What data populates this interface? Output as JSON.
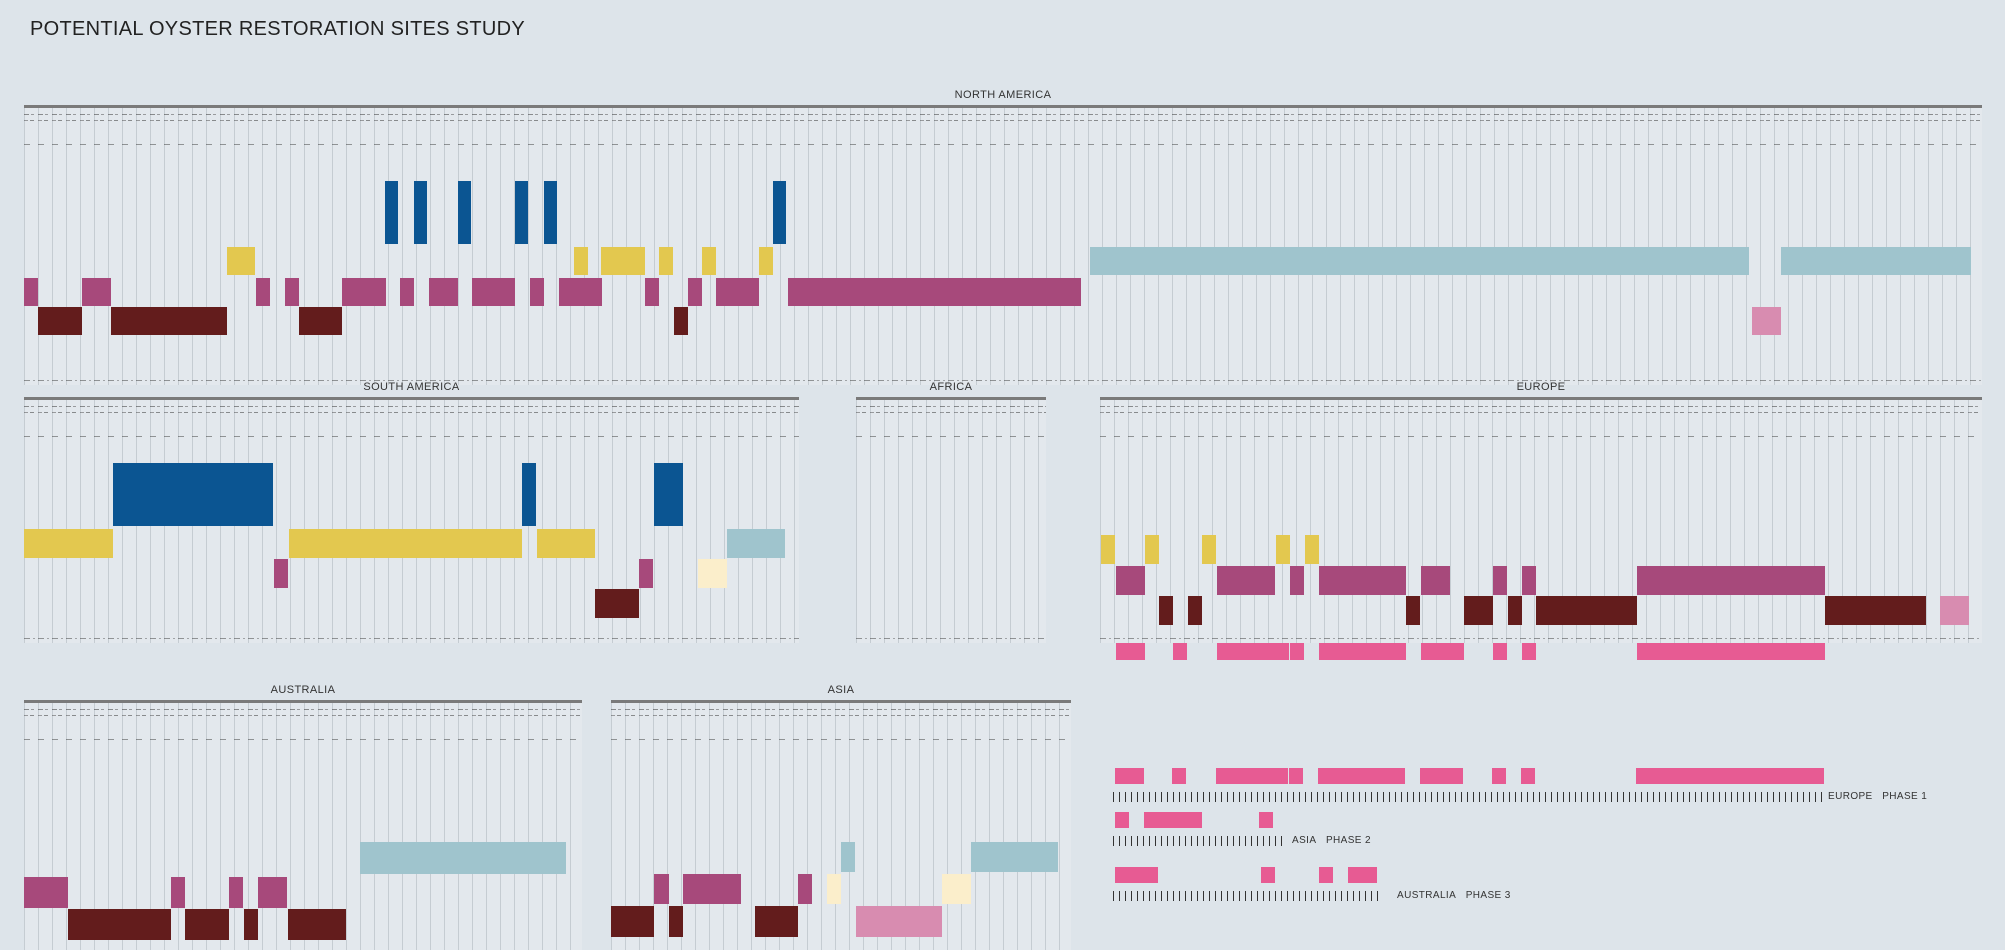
{
  "title": "POTENTIAL OYSTER RESTORATION SITES STUDY",
  "regions": {
    "north_america": "NORTH AMERICA",
    "south_america": "SOUTH AMERICA",
    "africa": "AFRICA",
    "europe": "EUROPE",
    "australia": "AUSTRALIA",
    "asia": "ASIA"
  },
  "phases": [
    {
      "region": "EUROPE",
      "label": "PHASE 1"
    },
    {
      "region": "ASIA",
      "label": "PHASE 2"
    },
    {
      "region": "AUSTRALIA",
      "label": "PHASE 3"
    }
  ],
  "colors": {
    "blue": "#0b5592",
    "yellow": "#e3c84f",
    "mauve": "#a7497b",
    "maroon": "#631c1c",
    "light_teal": "#9fc4cd",
    "light_pink": "#d88cb0",
    "cream": "#fbeecb",
    "hot_pink": "#e75b93"
  }
}
